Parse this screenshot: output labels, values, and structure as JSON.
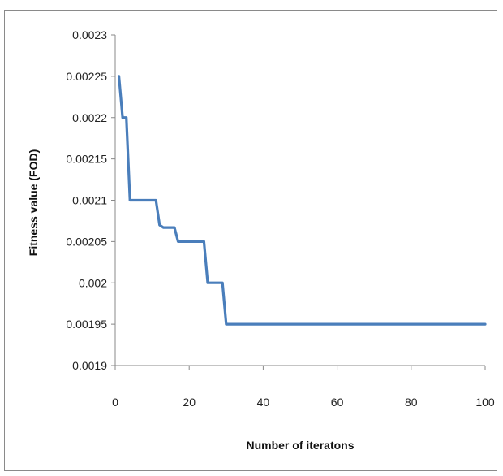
{
  "chart_data": {
    "type": "line",
    "title": "",
    "xlabel": "Number of iteratons",
    "ylabel": "Fitness value (FOD)",
    "xlim": [
      0,
      100
    ],
    "ylim": [
      0.0019,
      0.0023
    ],
    "x_ticks": [
      0,
      20,
      40,
      60,
      80,
      100
    ],
    "x_tick_labels": [
      "0",
      "20",
      "40",
      "60",
      "80",
      "100"
    ],
    "y_ticks": [
      0.0019,
      0.00195,
      0.002,
      0.00205,
      0.0021,
      0.00215,
      0.0022,
      0.00225,
      0.0023
    ],
    "y_tick_labels": [
      "0.0019",
      "0.00195",
      "0.002",
      "0.00205",
      "0.0021",
      "0.00215",
      "0.0022",
      "0.00225",
      "0.0023"
    ],
    "grid": false,
    "legend": "none",
    "series": [
      {
        "color": "#4a7ebb",
        "points": [
          [
            1,
            0.00225
          ],
          [
            2,
            0.0022
          ],
          [
            3,
            0.0022
          ],
          [
            4,
            0.0021
          ],
          [
            5,
            0.0021
          ],
          [
            10,
            0.0021
          ],
          [
            11,
            0.0021
          ],
          [
            12,
            0.00207
          ],
          [
            13,
            0.002067
          ],
          [
            15,
            0.002067
          ],
          [
            16,
            0.002067
          ],
          [
            17,
            0.00205
          ],
          [
            23,
            0.00205
          ],
          [
            24,
            0.00205
          ],
          [
            25,
            0.002
          ],
          [
            26,
            0.002
          ],
          [
            29,
            0.002
          ],
          [
            30,
            0.00195
          ],
          [
            35,
            0.00195
          ],
          [
            50,
            0.00195
          ],
          [
            70,
            0.00195
          ],
          [
            90,
            0.00195
          ],
          [
            100,
            0.00195
          ]
        ]
      }
    ]
  }
}
